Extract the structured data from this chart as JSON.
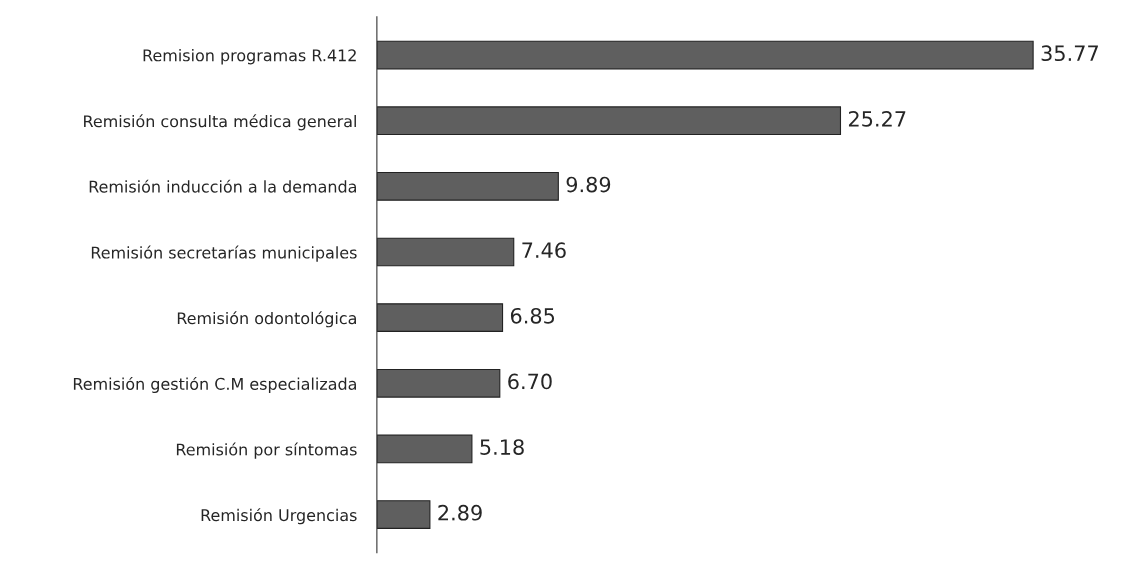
{
  "chart_data": {
    "type": "bar",
    "orientation": "horizontal",
    "categories": [
      "Remision programas R.412",
      "Remisión consulta médica general",
      "Remisión inducción a la demanda",
      "Remisión secretarías municipales",
      "Remisión odontológica",
      "Remisión gestión C.M especializada",
      "Remisión por síntomas",
      "Remisión Urgencias"
    ],
    "values": [
      35.77,
      25.27,
      9.89,
      7.46,
      6.85,
      6.7,
      5.18,
      2.89
    ],
    "value_labels": [
      "35.77",
      "25.27",
      "9.89",
      "7.46",
      "6.85",
      "6.70",
      "5.18",
      "2.89"
    ],
    "color": "#5f5f5f",
    "grid": false,
    "legend": false
  }
}
